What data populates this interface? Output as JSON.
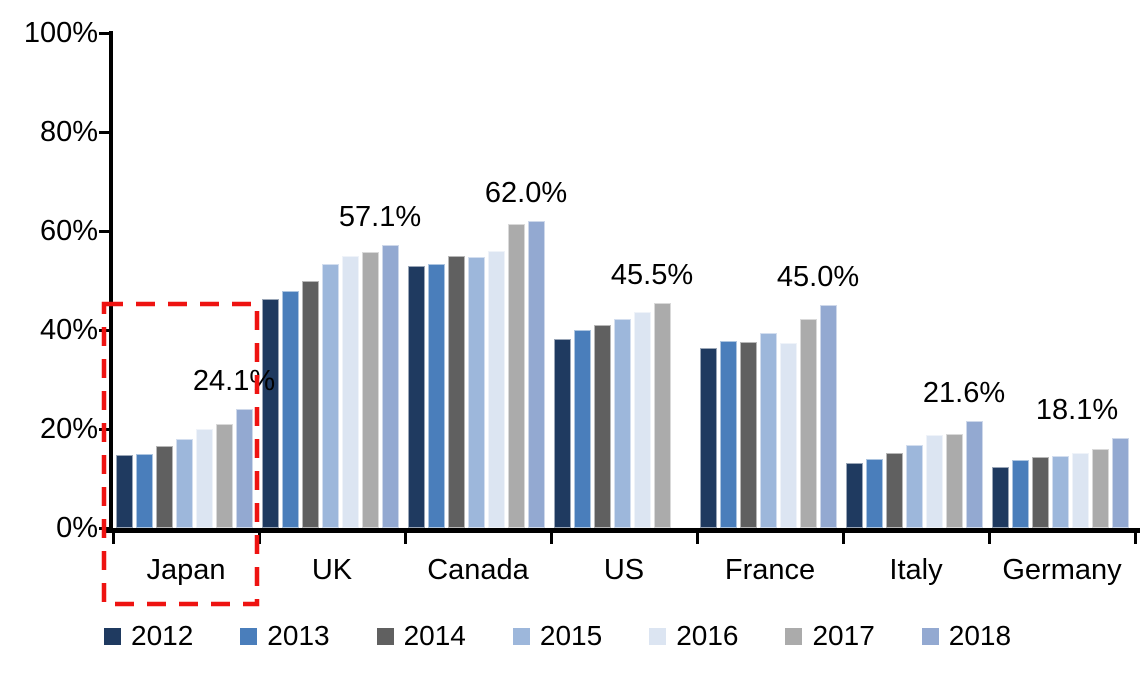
{
  "chart_data": {
    "type": "bar",
    "title": "",
    "xlabel": "",
    "ylabel": "",
    "ylim": [
      0,
      100
    ],
    "grid": false,
    "legend_position": "bottom",
    "y_tick_labels": [
      "100%",
      "80%",
      "60%",
      "40%",
      "20%",
      "0%"
    ],
    "y_tick_values": [
      100,
      80,
      60,
      40,
      20,
      0
    ],
    "categories": [
      "Japan",
      "UK",
      "Canada",
      "US",
      "France",
      "Italy",
      "Germany"
    ],
    "series": [
      {
        "name": "2012",
        "color": "#1F3A60",
        "values": [
          14.8,
          46.3,
          53.0,
          38.2,
          36.4,
          13.2,
          12.4
        ]
      },
      {
        "name": "2013",
        "color": "#4A7EBB",
        "values": [
          14.9,
          47.8,
          53.3,
          40.0,
          37.7,
          14.0,
          13.7
        ]
      },
      {
        "name": "2014",
        "color": "#606060",
        "values": [
          16.5,
          50.0,
          54.9,
          41.0,
          37.6,
          15.2,
          14.3
        ]
      },
      {
        "name": "2015",
        "color": "#9DB7DB",
        "values": [
          17.9,
          53.4,
          54.7,
          42.3,
          39.4,
          16.7,
          14.6
        ]
      },
      {
        "name": "2016",
        "color": "#DCE5F2",
        "values": [
          19.9,
          54.9,
          56.0,
          43.6,
          37.3,
          18.8,
          15.2
        ]
      },
      {
        "name": "2017",
        "color": "#ABABAB",
        "values": [
          21.0,
          55.8,
          61.5,
          45.5,
          42.3,
          19.0,
          15.9
        ]
      },
      {
        "name": "2018",
        "color": "#93A9D1",
        "values": [
          24.1,
          57.1,
          62.0,
          null,
          45.0,
          21.6,
          18.1
        ]
      }
    ],
    "data_labels": [
      "24.1%",
      "57.1%",
      "62.0%",
      "45.5%",
      "45.0%",
      "21.6%",
      "18.1%"
    ],
    "annotations": {
      "highlighted_category": "Japan",
      "highlight_color": "#EE1311",
      "highlight_style": "dashed-rectangle"
    },
    "axis_color": "#000000",
    "background_color": "#FFFFFF"
  }
}
